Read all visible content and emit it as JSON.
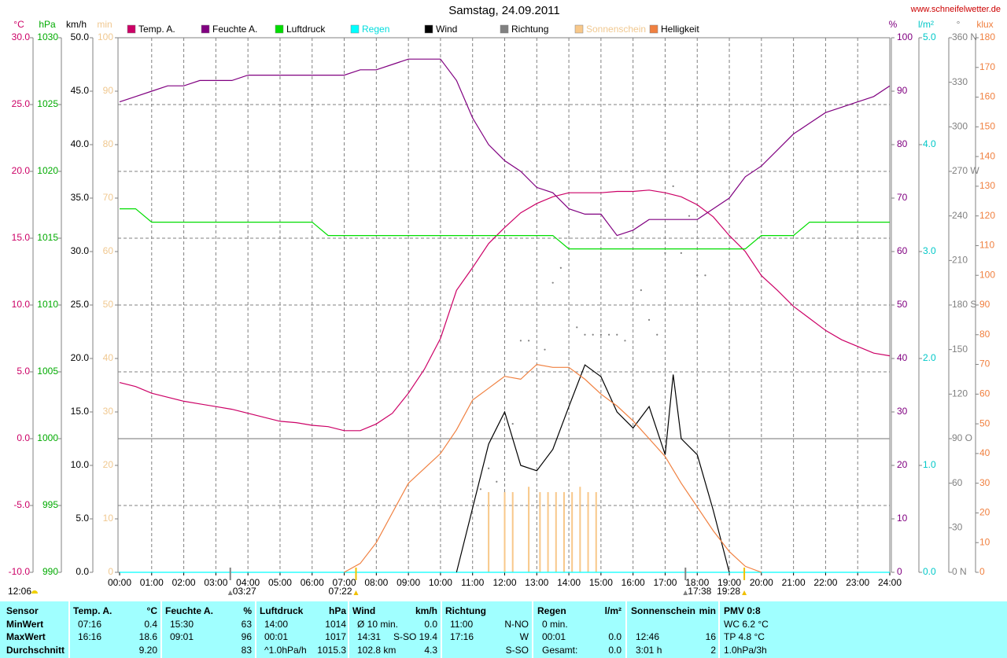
{
  "chart_data": {
    "type": "line",
    "title": "Samstag, 24.09.2011",
    "source": "www.schneifelwetter.de",
    "noon": "12:06",
    "xlim": [
      0,
      24
    ],
    "xticks": [
      {
        "value": 0,
        "label": "00:00"
      },
      {
        "value": 1,
        "label": "01:00"
      },
      {
        "value": 2,
        "label": "02:00"
      },
      {
        "value": 3,
        "label": "03:00"
      },
      {
        "value": 4,
        "label": "04:00"
      },
      {
        "value": 5,
        "label": "05:00"
      },
      {
        "value": 6,
        "label": "06:00"
      },
      {
        "value": 7,
        "label": "07:00"
      },
      {
        "value": 8,
        "label": "08:00"
      },
      {
        "value": 9,
        "label": "09:00"
      },
      {
        "value": 10,
        "label": "10:00"
      },
      {
        "value": 11,
        "label": "11:00"
      },
      {
        "value": 12,
        "label": "12:00"
      },
      {
        "value": 13,
        "label": "13:00"
      },
      {
        "value": 14,
        "label": "14:00"
      },
      {
        "value": 15,
        "label": "15:00"
      },
      {
        "value": 16,
        "label": "16:00"
      },
      {
        "value": 17,
        "label": "17:00"
      },
      {
        "value": 18,
        "label": "18:00"
      },
      {
        "value": 19,
        "label": "19:00"
      },
      {
        "value": 20,
        "label": "20:00"
      },
      {
        "value": 21,
        "label": "21:00"
      },
      {
        "value": 22,
        "label": "22:00"
      },
      {
        "value": 23,
        "label": "23:00"
      },
      {
        "value": 24,
        "label": "24:00"
      }
    ],
    "grid": true,
    "grid_axis": 0,
    "axes": [
      {
        "unit": "°C",
        "color": "#cc0066",
        "lim": [
          -10,
          30
        ],
        "ticks": [
          {
            "value": -10,
            "label": "-10.0"
          },
          {
            "value": -5,
            "label": "-5.0"
          },
          {
            "value": 0,
            "label": "0.0"
          },
          {
            "value": 5,
            "label": "5.0"
          },
          {
            "value": 10,
            "label": "10.0"
          },
          {
            "value": 15,
            "label": "15.0"
          },
          {
            "value": 20,
            "label": "20.0"
          },
          {
            "value": 25,
            "label": "25.0"
          },
          {
            "value": 30,
            "label": "30.0"
          }
        ]
      },
      {
        "unit": "hPa",
        "color": "#00aa00",
        "lim": [
          990,
          1030
        ],
        "ticks": [
          990,
          995,
          1000,
          1005,
          1010,
          1015,
          1020,
          1025,
          1030
        ]
      },
      {
        "unit": "km/h",
        "color": "#000000",
        "lim": [
          0,
          50
        ],
        "ticks": [
          {
            "value": 0,
            "label": "0.0"
          },
          {
            "value": 5,
            "label": "5.0"
          },
          {
            "value": 10,
            "label": "10.0"
          },
          {
            "value": 15,
            "label": "15.0"
          },
          {
            "value": 20,
            "label": "20.0"
          },
          {
            "value": 25,
            "label": "25.0"
          },
          {
            "value": 30,
            "label": "30.0"
          },
          {
            "value": 35,
            "label": "35.0"
          },
          {
            "value": 40,
            "label": "40.0"
          },
          {
            "value": 45,
            "label": "45.0"
          },
          {
            "value": 50,
            "label": "50.0"
          }
        ]
      },
      {
        "unit": "min",
        "color": "#f0c890",
        "lim": [
          0,
          100
        ],
        "ticks": [
          0,
          10,
          20,
          30,
          40,
          50,
          60,
          70,
          80,
          90,
          100
        ]
      },
      {
        "unit": "%",
        "color": "#800080",
        "lim": [
          0,
          100
        ],
        "ticks": [
          0,
          10,
          20,
          30,
          40,
          50,
          60,
          70,
          80,
          90,
          100
        ]
      },
      {
        "unit": "l/m²",
        "color": "#00c8c8",
        "lim": [
          0,
          5
        ],
        "ticks": [
          {
            "value": 0,
            "label": "0.0"
          },
          {
            "value": 1,
            "label": "1.0"
          },
          {
            "value": 2,
            "label": "2.0"
          },
          {
            "value": 3,
            "label": "3.0"
          },
          {
            "value": 4,
            "label": "4.0"
          },
          {
            "value": 5,
            "label": "5.0"
          }
        ]
      },
      {
        "unit": "°",
        "color": "#808080",
        "lim": [
          0,
          360
        ],
        "ticks": [
          {
            "value": 0,
            "label": "0 N"
          },
          30,
          60,
          {
            "value": 90,
            "label": "90 O"
          },
          120,
          150,
          {
            "value": 180,
            "label": "180 S"
          },
          210,
          240,
          {
            "value": 270,
            "label": "270 W"
          },
          300,
          330,
          {
            "value": 360,
            "label": "360 N"
          }
        ]
      },
      {
        "unit": "klux",
        "color": "#f08040",
        "lim": [
          0,
          180
        ],
        "ticks": [
          0,
          10,
          20,
          30,
          40,
          50,
          60,
          70,
          80,
          90,
          100,
          110,
          120,
          130,
          140,
          150,
          160,
          170,
          180
        ]
      }
    ],
    "series": [
      {
        "name": "Temp. A.",
        "color": "#cc0066",
        "axis": 0,
        "mark": "line",
        "x": [
          0,
          0.5,
          1,
          1.5,
          2,
          2.5,
          3,
          3.5,
          4,
          4.5,
          5,
          5.5,
          6,
          6.5,
          7,
          7.5,
          8,
          8.5,
          9,
          9.5,
          10,
          10.5,
          11,
          11.5,
          12,
          12.5,
          13,
          13.5,
          14,
          14.5,
          15,
          15.5,
          16,
          16.5,
          17,
          17.5,
          18,
          18.5,
          19,
          19.5,
          20,
          20.5,
          21,
          21.5,
          22,
          22.5,
          23,
          23.5,
          24
        ],
        "values": [
          4.2,
          3.9,
          3.4,
          3.1,
          2.8,
          2.6,
          2.4,
          2.2,
          1.9,
          1.6,
          1.3,
          1.2,
          1.0,
          0.9,
          0.6,
          0.6,
          1.1,
          1.9,
          3.4,
          5.2,
          7.5,
          11.1,
          12.8,
          14.6,
          15.8,
          16.9,
          17.6,
          18.1,
          18.4,
          18.4,
          18.4,
          18.5,
          18.5,
          18.6,
          18.4,
          18.1,
          17.5,
          16.6,
          15.2,
          14.0,
          12.2,
          11.1,
          9.9,
          9.0,
          8.1,
          7.4,
          6.9,
          6.4,
          6.2
        ]
      },
      {
        "name": "Feuchte A.",
        "color": "#800080",
        "axis": 4,
        "mark": "line",
        "x": [
          0,
          0.5,
          1,
          1.5,
          2,
          2.5,
          3,
          3.5,
          4,
          4.5,
          5,
          5.5,
          6,
          6.5,
          7,
          7.5,
          8,
          8.5,
          9,
          9.5,
          10,
          10.5,
          11,
          11.5,
          12,
          12.5,
          13,
          13.5,
          14,
          14.5,
          15,
          15.5,
          16,
          16.5,
          17,
          17.5,
          18,
          18.5,
          19,
          19.5,
          20,
          20.5,
          21,
          21.5,
          22,
          22.5,
          23,
          23.5,
          24
        ],
        "values": [
          88,
          89,
          90,
          91,
          91,
          92,
          92,
          92,
          93,
          93,
          93,
          93,
          93,
          93,
          93,
          94,
          94,
          95,
          96,
          96,
          96,
          92,
          85,
          80,
          77,
          75,
          72,
          71,
          68,
          67,
          67,
          63,
          64,
          66,
          66,
          66,
          66,
          68,
          70,
          74,
          76,
          79,
          82,
          84,
          86,
          87,
          88,
          89,
          91
        ]
      },
      {
        "name": "Luftdruck",
        "color": "#00dd00",
        "axis": 1,
        "mark": "line",
        "x": [
          0,
          0.5,
          1,
          1.5,
          2,
          2.5,
          3,
          3.5,
          4,
          4.5,
          5,
          5.5,
          6,
          6.5,
          7,
          7.5,
          8,
          8.5,
          9,
          9.5,
          10,
          10.5,
          11,
          11.5,
          12,
          12.5,
          13,
          13.5,
          14,
          14.5,
          15,
          15.5,
          16,
          16.5,
          17,
          17.5,
          18,
          18.5,
          19,
          19.5,
          20,
          20.5,
          21,
          21.5,
          22,
          22.5,
          23,
          23.5,
          24
        ],
        "values": [
          1017.2,
          1017.2,
          1016.2,
          1016.2,
          1016.2,
          1016.2,
          1016.2,
          1016.2,
          1016.2,
          1016.2,
          1016.2,
          1016.2,
          1016.2,
          1015.2,
          1015.2,
          1015.2,
          1015.2,
          1015.2,
          1015.2,
          1015.2,
          1015.2,
          1015.2,
          1015.2,
          1015.2,
          1015.2,
          1015.2,
          1015.2,
          1015.2,
          1014.2,
          1014.2,
          1014.2,
          1014.2,
          1014.2,
          1014.2,
          1014.2,
          1014.2,
          1014.2,
          1014.2,
          1014.2,
          1014.2,
          1015.2,
          1015.2,
          1015.2,
          1016.2,
          1016.2,
          1016.2,
          1016.2,
          1016.2,
          1016.2
        ]
      },
      {
        "name": "Regen",
        "color": "#00ffff",
        "text_color": "#00dddd",
        "axis": 5,
        "mark": "line",
        "x": [
          0,
          24
        ],
        "values": [
          0,
          0
        ]
      },
      {
        "name": "Wind",
        "color": "#000000",
        "axis": 2,
        "mark": "line",
        "x": [
          10.5,
          11,
          11.5,
          12,
          12.5,
          13,
          13.5,
          14,
          14.5,
          15,
          15.5,
          16,
          16.5,
          17,
          17.25,
          17.5,
          18,
          18.5,
          19
        ],
        "values": [
          0,
          6,
          12,
          15,
          10,
          9.5,
          11.5,
          15.5,
          19.4,
          18.3,
          15,
          13.5,
          15.5,
          11,
          18.5,
          12.5,
          11,
          5.8,
          0
        ]
      },
      {
        "name": "Richtung",
        "color": "#808080",
        "axis": 6,
        "mark": "dots",
        "x": [
          11,
          11.25,
          11.5,
          11.75,
          12.25,
          12.5,
          12.75,
          13.25,
          13.5,
          13.75,
          14.25,
          14.5,
          14.75,
          15,
          15.25,
          15.5,
          15.75,
          16.25,
          16.5,
          16.75,
          17,
          17.25,
          17.5,
          17.75,
          18,
          18.25
        ],
        "values": [
          61,
          56,
          70,
          61,
          100,
          156,
          156,
          150,
          195,
          205,
          165,
          160,
          160,
          160,
          160,
          160,
          156,
          190,
          170,
          160,
          215,
          260,
          215,
          240,
          200,
          200
        ]
      },
      {
        "name": "Sonnenschein",
        "color": "#f8c88a",
        "text_color": "#f0c890",
        "axis": 3,
        "mark": "bars",
        "x": [
          11.5,
          12,
          12.25,
          12.75,
          13.1,
          13.35,
          13.6,
          13.85,
          14.1,
          14.35,
          14.6,
          14.85
        ],
        "values": [
          15,
          15,
          15,
          16,
          15,
          15,
          15,
          15,
          15,
          16,
          15,
          15
        ]
      },
      {
        "name": "Helligkeit",
        "color": "#f08040",
        "axis": 7,
        "mark": "line",
        "x": [
          7,
          7.5,
          8,
          8.5,
          9,
          9.5,
          10,
          10.5,
          11,
          11.5,
          12,
          12.5,
          13,
          13.5,
          14,
          14.5,
          15,
          15.5,
          16,
          16.5,
          17,
          17.5,
          18,
          18.5,
          19,
          19.5,
          20
        ],
        "values": [
          0,
          3,
          10,
          20,
          30,
          35,
          40,
          48,
          58,
          62,
          66,
          65,
          70,
          69,
          69,
          65,
          60,
          56,
          51,
          45,
          39,
          30,
          22,
          14,
          7,
          2,
          0
        ]
      }
    ],
    "events": [
      {
        "label": "03:27",
        "x": 3.45,
        "color": "#808080"
      },
      {
        "label": "07:22",
        "x": 7.3667,
        "color": "#f0c000"
      },
      {
        "label": "17:38",
        "x": 17.6333,
        "color": "#808080"
      },
      {
        "label": "19:28",
        "x": 19.4667,
        "color": "#f0c000"
      }
    ]
  },
  "table": {
    "columns": [
      {
        "name": "Sensor"
      },
      {
        "name": "Temp. A.",
        "unit": "°C"
      },
      {
        "name": "Feuchte A.",
        "unit": "%"
      },
      {
        "name": "Luftdruck",
        "unit": "hPa"
      },
      {
        "name": "Wind",
        "unit": "km/h"
      },
      {
        "name": "Richtung"
      },
      {
        "name": "Regen",
        "unit": "l/m²"
      },
      {
        "name": "Sonnenschein",
        "unit": "min"
      },
      {
        "name": "PMV 0:8"
      }
    ],
    "rows": [
      {
        "label": "MinWert",
        "cells": [
          {
            "left": "07:16",
            "right": "0.4"
          },
          {
            "left": "15:30",
            "right": "63"
          },
          {
            "left": "14:00",
            "right": "1014"
          },
          {
            "left": "Ø 10 min.",
            "right": "0.0"
          },
          {
            "left": "11:00",
            "right": "N-NO"
          },
          {
            "left": "0 min."
          },
          {},
          {
            "left": "WC 6.2 °C"
          }
        ]
      },
      {
        "label": "MaxWert",
        "cells": [
          {
            "left": "16:16",
            "right": "18.6"
          },
          {
            "left": "09:01",
            "right": "96"
          },
          {
            "left": "00:01",
            "right": "1017"
          },
          {
            "left": "14:31",
            "right": "S-SO 19.4"
          },
          {
            "left": "17:16",
            "right": "W"
          },
          {
            "left": "00:01",
            "right": "0.0"
          },
          {
            "left": "12:46",
            "right": "16"
          },
          {
            "left": "TP 4.8 °C"
          }
        ]
      },
      {
        "label": "Durchschnitt",
        "cells": [
          {
            "right": "9.20"
          },
          {
            "right": "83"
          },
          {
            "left": "^1.0hPa/h",
            "right": "1015.3"
          },
          {
            "left": "102.8 km",
            "right": "4.3"
          },
          {
            "right": "S-SO"
          },
          {
            "left": "Gesamt:",
            "right": "0.0"
          },
          {
            "left": "3:01 h",
            "right": "2"
          },
          {
            "left": "1.0hPa/3h"
          }
        ]
      }
    ]
  }
}
